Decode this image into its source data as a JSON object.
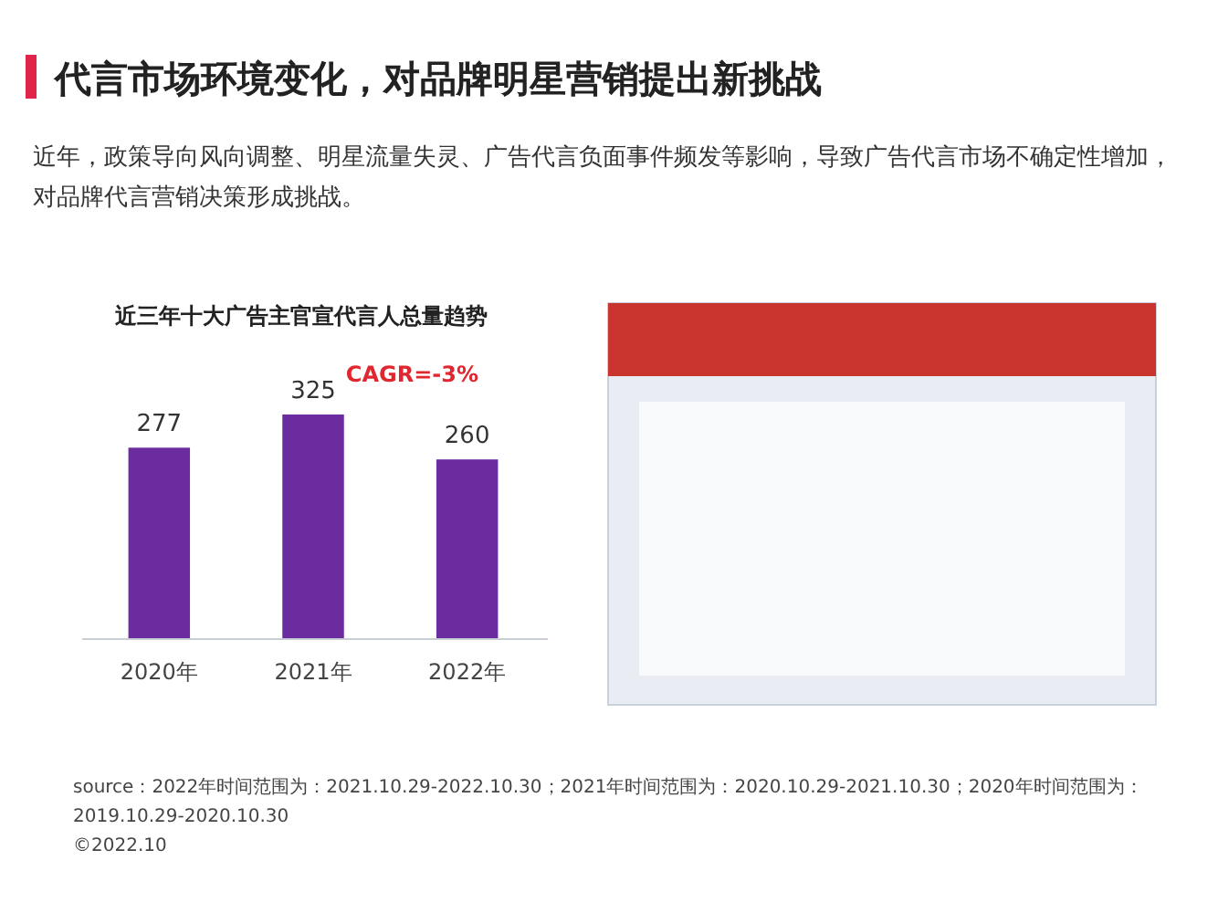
{
  "chart_data": {
    "type": "bar",
    "title": "代言市场环境变化，对品牌明星营销提出新挑战",
    "subtitle": "近年，政策导向风向调整、明星流量失灵、广告代言负面事件频发等影响，导致广告代言市场不确定性增加，对品牌代言营销决策形成挑战。",
    "categories": [
      "2020年",
      "2021年",
      "2022年"
    ],
    "values": [
      277,
      325,
      260
    ],
    "color": "#6b2c9f",
    "data_labels": true,
    "annotations": [
      "近三年十大广告主官宣代言人总量趋势",
      "CAGR=-3%",
      "source：2022年时间范围为：2021.10.29-2022.10.30；2021年时间范围为：2020.10.29-2021.10.30；2020年时间范围为：2019.10.29-2020.10.30",
      "©2022.10"
    ]
  }
}
